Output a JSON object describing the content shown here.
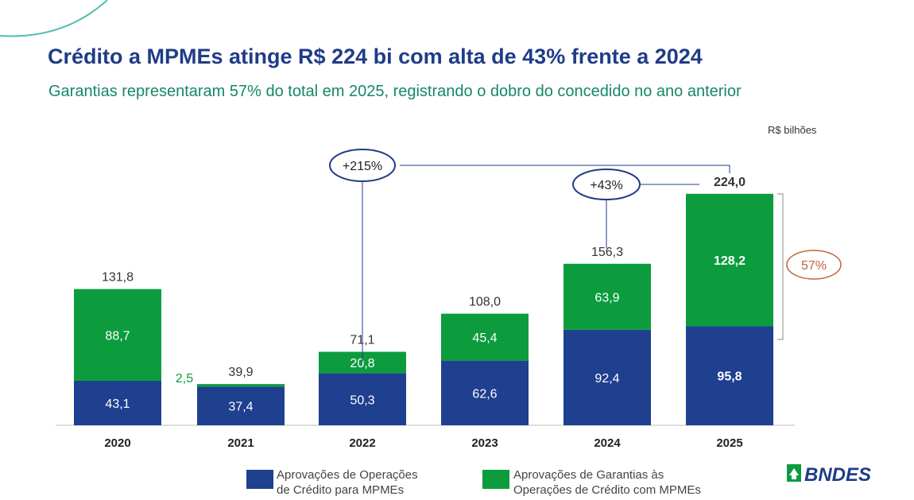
{
  "title": "Crédito a MPMEs atinge R$ 224 bi com alta de 43% frente a 2024",
  "subtitle": "Garantias representaram 57% do total em 2025, registrando o dobro do concedido no ano anterior",
  "unit": "R$ bilhões",
  "logo_text": "BNDES",
  "colors": {
    "credit": "#1f3f8f",
    "guarantee": "#0c9c3e",
    "title": "#1f3c88",
    "subtitle": "#16876a",
    "share_ellipse": "#c0643a"
  },
  "chart_data": {
    "type": "bar",
    "stacked": true,
    "categories": [
      "2020",
      "2021",
      "2022",
      "2023",
      "2024",
      "2025"
    ],
    "series": [
      {
        "name": "Aprovações de Operações de Crédito para MPMEs",
        "values": [
          43.1,
          37.4,
          50.3,
          62.6,
          92.4,
          95.8
        ],
        "labels": [
          "43,1",
          "37,4",
          "50,3",
          "62,6",
          "92,4",
          "95,8"
        ]
      },
      {
        "name": "Aprovações de Garantias às Operações de Crédito com MPMEs",
        "values": [
          88.7,
          2.5,
          20.8,
          45.4,
          63.9,
          128.2
        ],
        "labels": [
          "88,7",
          "2,5",
          "20,8",
          "45,4",
          "63,9",
          "128,2"
        ]
      }
    ],
    "totals": [
      131.8,
      39.9,
      71.1,
      108.0,
      156.3,
      224.0
    ],
    "total_labels": [
      "131,8",
      "39,9",
      "71,1",
      "108,0",
      "156,3",
      "224,0"
    ],
    "annotations": [
      {
        "text": "+215%",
        "from": "2022",
        "to": "2025"
      },
      {
        "text": "+43%",
        "from": "2024",
        "to": "2025"
      },
      {
        "text": "57%",
        "target": "2025 guarantees share"
      }
    ],
    "legend": {
      "placement": "bottom",
      "entries": [
        {
          "line1": "Aprovações de Operações",
          "line2": "de Crédito para MPMEs"
        },
        {
          "line1": "Aprovações de Garantias às",
          "line2": "Operações de Crédito com MPMEs"
        }
      ]
    }
  }
}
